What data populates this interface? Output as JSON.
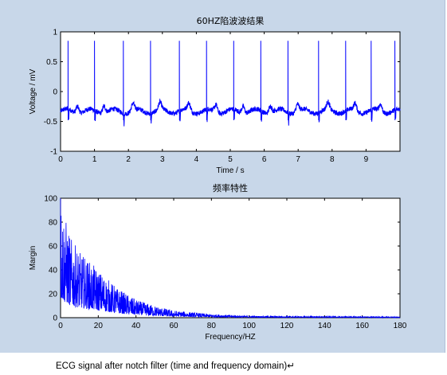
{
  "caption": "ECG signal after notch filter (time and frequency domain)↵",
  "colors": {
    "window_bg": "#c8d7e9",
    "axes_bg": "#ffffff",
    "line": "#0000ff"
  },
  "chart_data": [
    {
      "type": "line",
      "title": "60HZ陷波波结果",
      "xlabel": "Time / s",
      "ylabel": "Voltage / mV",
      "xlim": [
        0,
        10
      ],
      "ylim": [
        -1,
        1
      ],
      "xticks": [
        "0",
        "1",
        "2",
        "3",
        "4",
        "5",
        "6",
        "7",
        "8",
        "9"
      ],
      "yticks": [
        "-1",
        "-0.5",
        "0",
        "0.5",
        "1"
      ],
      "baseline": -0.33,
      "r_peaks_s": [
        0.22,
        1.0,
        1.85,
        2.65,
        3.5,
        4.3,
        5.1,
        5.9,
        6.7,
        7.6,
        8.4,
        9.15,
        9.85
      ],
      "r_amplitude": 0.85,
      "series": [
        {
          "values_description_free": true
        }
      ]
    },
    {
      "type": "line",
      "title": "频率特性",
      "xlabel": "Frequency/HZ",
      "ylabel": "Margin",
      "xlim": [
        0,
        180
      ],
      "ylim": [
        0,
        100
      ],
      "xticks": [
        "0",
        "20",
        "40",
        "60",
        "80",
        "100",
        "120",
        "140",
        "160",
        "180"
      ],
      "yticks": [
        "0",
        "20",
        "40",
        "60",
        "80",
        "100"
      ],
      "envelope": [
        {
          "f": 0,
          "peak": 100
        },
        {
          "f": 5,
          "peak": 68
        },
        {
          "f": 10,
          "peak": 55
        },
        {
          "f": 20,
          "peak": 40
        },
        {
          "f": 30,
          "peak": 25
        },
        {
          "f": 40,
          "peak": 15
        },
        {
          "f": 50,
          "peak": 10
        },
        {
          "f": 60,
          "peak": 6
        },
        {
          "f": 80,
          "peak": 3
        },
        {
          "f": 100,
          "peak": 1.5
        },
        {
          "f": 180,
          "peak": 0.8
        }
      ]
    }
  ]
}
